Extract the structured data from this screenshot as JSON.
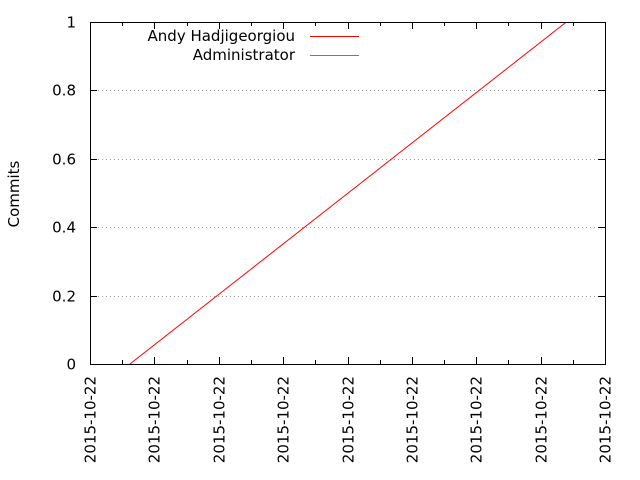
{
  "chart_data": {
    "type": "line",
    "title": "",
    "xlabel": "",
    "ylabel": "Commits",
    "ylim": [
      0,
      1
    ],
    "y_ticks": [
      "0",
      "0.2",
      "0.4",
      "0.6",
      "0.8",
      "1"
    ],
    "x_tick_labels": [
      "2015-10-22",
      "2015-10-22",
      "2015-10-22",
      "2015-10-22",
      "2015-10-22",
      "2015-10-22",
      "2015-10-22",
      "2015-10-22",
      "2015-10-22"
    ],
    "grid": "horizontal dotted",
    "legend_position": "top-left",
    "series": [
      {
        "name": "Andy Hadjigeorgiou",
        "color": "#ff0000",
        "points": [
          {
            "x_tick_fraction": 0.62,
            "y": 0
          },
          {
            "x_tick_fraction": 7.4,
            "y": 1
          }
        ]
      },
      {
        "name": "Administrator",
        "color": "#00cc00",
        "points": []
      }
    ]
  }
}
